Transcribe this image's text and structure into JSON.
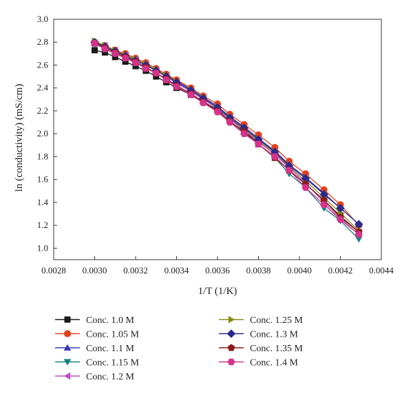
{
  "chart_data": {
    "type": "line",
    "xlabel": "1/T (1/K)",
    "ylabel": "ln (conductivity) (mS/cm)",
    "xlim": [
      0.0028,
      0.0044
    ],
    "ylim": [
      0.9,
      3.0
    ],
    "x_ticks": [
      "0.0028",
      "0.0030",
      "0.0032",
      "0.0034",
      "0.0036",
      "0.0038",
      "0.0040",
      "0.0042",
      "0.0044"
    ],
    "y_ticks": [
      "1.0",
      "1.2",
      "1.4",
      "1.6",
      "1.8",
      "2.0",
      "2.2",
      "2.4",
      "2.6",
      "2.8",
      "3.0"
    ],
    "grid": false,
    "legend_position": "bottom",
    "x": [
      0.003,
      0.00305,
      0.0031,
      0.00315,
      0.0032,
      0.00325,
      0.0033,
      0.00335,
      0.0034,
      0.00347,
      0.00353,
      0.0036,
      0.00366,
      0.00373,
      0.0038,
      0.00388,
      0.00395,
      0.00403,
      0.00412,
      0.0042,
      0.00429
    ],
    "series": [
      {
        "name": "Conc. 1.0 M",
        "color": "#1a1a1a",
        "marker": "square",
        "values": [
          2.73,
          2.71,
          2.67,
          2.63,
          2.59,
          2.55,
          2.5,
          2.45,
          2.4,
          2.34,
          2.28,
          2.21,
          2.13,
          2.03,
          1.91,
          1.79,
          1.68,
          1.56,
          1.42,
          1.28,
          1.14
        ]
      },
      {
        "name": "Conc. 1.05 M",
        "color": "#e2431e",
        "marker": "circle",
        "values": [
          2.8,
          2.77,
          2.73,
          2.7,
          2.66,
          2.62,
          2.57,
          2.52,
          2.47,
          2.4,
          2.33,
          2.26,
          2.17,
          2.08,
          1.99,
          1.88,
          1.76,
          1.65,
          1.51,
          1.38,
          1.2
        ]
      },
      {
        "name": "Conc. 1.1 M",
        "color": "#3b3bb3",
        "marker": "triangle-up",
        "values": [
          2.79,
          2.76,
          2.72,
          2.68,
          2.64,
          2.6,
          2.56,
          2.51,
          2.46,
          2.39,
          2.32,
          2.24,
          2.15,
          2.06,
          1.96,
          1.85,
          1.73,
          1.62,
          1.48,
          1.35,
          1.21
        ]
      },
      {
        "name": "Conc. 1.15 M",
        "color": "#168080",
        "marker": "triangle-down",
        "values": [
          2.78,
          2.75,
          2.71,
          2.67,
          2.63,
          2.58,
          2.53,
          2.48,
          2.42,
          2.35,
          2.28,
          2.2,
          2.11,
          2.01,
          1.91,
          1.79,
          1.65,
          1.53,
          1.35,
          1.24,
          1.08
        ]
      },
      {
        "name": "Conc. 1.2 M",
        "color": "#bf4fbf",
        "marker": "triangle-left",
        "values": [
          2.79,
          2.77,
          2.73,
          2.69,
          2.65,
          2.6,
          2.55,
          2.5,
          2.44,
          2.37,
          2.3,
          2.22,
          2.13,
          2.03,
          1.93,
          1.82,
          1.7,
          1.57,
          1.4,
          1.26,
          1.12
        ]
      },
      {
        "name": "Conc. 1.25 M",
        "color": "#8a8a1a",
        "marker": "triangle-right",
        "values": [
          2.81,
          2.77,
          2.73,
          2.69,
          2.65,
          2.61,
          2.56,
          2.51,
          2.45,
          2.38,
          2.31,
          2.23,
          2.14,
          2.04,
          1.94,
          1.83,
          1.71,
          1.59,
          1.44,
          1.31,
          1.15
        ]
      },
      {
        "name": "Conc. 1.3 M",
        "color": "#2a2a8a",
        "marker": "diamond",
        "values": [
          2.8,
          2.76,
          2.72,
          2.68,
          2.64,
          2.6,
          2.55,
          2.5,
          2.45,
          2.38,
          2.31,
          2.23,
          2.14,
          2.05,
          1.95,
          1.84,
          1.72,
          1.61,
          1.47,
          1.35,
          1.21
        ]
      },
      {
        "name": "Conc. 1.35 M",
        "color": "#8b1a1a",
        "marker": "pentagon",
        "values": [
          2.79,
          2.75,
          2.71,
          2.67,
          2.63,
          2.58,
          2.53,
          2.48,
          2.42,
          2.35,
          2.28,
          2.2,
          2.11,
          2.02,
          1.91,
          1.79,
          1.68,
          1.56,
          1.42,
          1.27,
          1.14
        ]
      },
      {
        "name": "Conc. 1.4 M",
        "color": "#d6338a",
        "marker": "hexagon",
        "values": [
          2.79,
          2.74,
          2.7,
          2.66,
          2.62,
          2.57,
          2.53,
          2.47,
          2.41,
          2.34,
          2.27,
          2.19,
          2.1,
          2.0,
          1.91,
          1.8,
          1.68,
          1.53,
          1.38,
          1.25,
          1.12
        ]
      }
    ]
  }
}
